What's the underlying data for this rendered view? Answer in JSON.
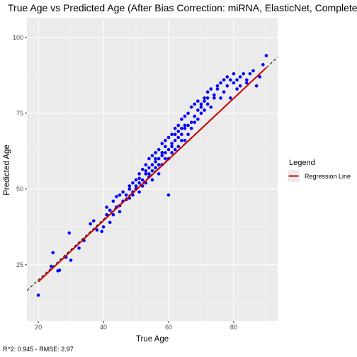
{
  "chart_data": {
    "type": "scatter",
    "title": "True Age vs Predicted Age (After Bias Correction: miRNA, ElasticNet, Complete",
    "xlabel": "True Age",
    "ylabel": "Predicted Age",
    "caption": "R^2: 0.945 - RMSE: 2.97",
    "xlim": [
      16.5,
      93.5
    ],
    "ylim": [
      6.5,
      106.5
    ],
    "xticks": [
      20,
      40,
      60,
      80
    ],
    "yticks": [
      25,
      50,
      75,
      100
    ],
    "grid": true,
    "legend": {
      "title": "Legend",
      "position": "right",
      "entries": [
        {
          "label": "Regression Line",
          "color": "#cc0000"
        }
      ]
    },
    "point_color": "#0000ff",
    "regression_line": {
      "x": [
        20,
        90
      ],
      "y": [
        19.4,
        90.0
      ],
      "color": "#cc0000"
    },
    "identity_line": {
      "x": [
        16.5,
        93.5
      ],
      "y": [
        16.5,
        93.5
      ],
      "style": "dashed",
      "color": "#000000"
    },
    "points": {
      "x": [
        20,
        24,
        24.5,
        26,
        26.5,
        28.5,
        29.5,
        30,
        32.5,
        34,
        36,
        37,
        38,
        39.5,
        40,
        41,
        41,
        42,
        42,
        43,
        43,
        44,
        44,
        45,
        45,
        45,
        46,
        46,
        47,
        47,
        48,
        48,
        48,
        49,
        49,
        49,
        50,
        50,
        50,
        51,
        51,
        51,
        51,
        52,
        52,
        52,
        53,
        53,
        53,
        53,
        54,
        54,
        54,
        54,
        55,
        55,
        55,
        55,
        56,
        56,
        56,
        56,
        57,
        57,
        57,
        57,
        58,
        58,
        58,
        58,
        59,
        59,
        59,
        59,
        60,
        60,
        60,
        60,
        61,
        61,
        61,
        61,
        62,
        62,
        62,
        62,
        63,
        63,
        63,
        63,
        64,
        64,
        64,
        64,
        65,
        65,
        65,
        65,
        66,
        66,
        66,
        67,
        67,
        67,
        68,
        68,
        68,
        69,
        69,
        69,
        70,
        70,
        70,
        71,
        71,
        71,
        72,
        72,
        72,
        73,
        73,
        74,
        74,
        75,
        75,
        76,
        76,
        77,
        77,
        78,
        78,
        79,
        79,
        80,
        80,
        81,
        81,
        82,
        82,
        83,
        84,
        84,
        85,
        86,
        87,
        88,
        89,
        90
      ],
      "y": [
        15,
        24.5,
        29,
        23,
        23.2,
        27.5,
        35.5,
        26.5,
        30.5,
        33,
        38.5,
        39.5,
        36.5,
        36,
        37.5,
        41.5,
        44,
        39,
        43,
        41.5,
        46,
        44,
        47.5,
        42.5,
        48,
        44.5,
        46,
        49,
        46.5,
        48,
        50,
        47,
        51,
        49,
        52,
        48,
        53,
        50,
        51,
        52,
        55,
        49,
        53.5,
        53,
        56.5,
        51,
        55,
        58,
        52,
        56,
        57,
        54,
        60,
        55,
        58,
        61,
        56,
        53,
        59,
        62,
        57,
        60,
        60,
        63,
        58,
        55,
        62,
        65,
        58,
        61,
        62,
        66,
        60,
        64,
        63,
        48,
        67,
        60,
        64,
        68,
        62,
        65,
        66,
        70,
        63,
        68,
        67,
        71,
        64,
        69,
        68,
        73,
        66,
        70,
        70,
        74,
        66,
        71,
        71,
        75,
        68,
        72,
        77,
        70,
        74,
        78,
        72,
        76,
        79,
        73,
        77,
        78,
        75,
        80,
        79,
        76,
        82,
        78,
        80,
        83,
        77,
        81,
        80,
        84,
        83,
        85,
        80,
        86,
        82,
        87,
        84,
        86,
        80,
        85,
        88,
        83,
        86,
        87,
        84,
        88,
        85,
        86,
        88,
        89,
        84,
        87,
        91,
        94
      ]
    }
  }
}
